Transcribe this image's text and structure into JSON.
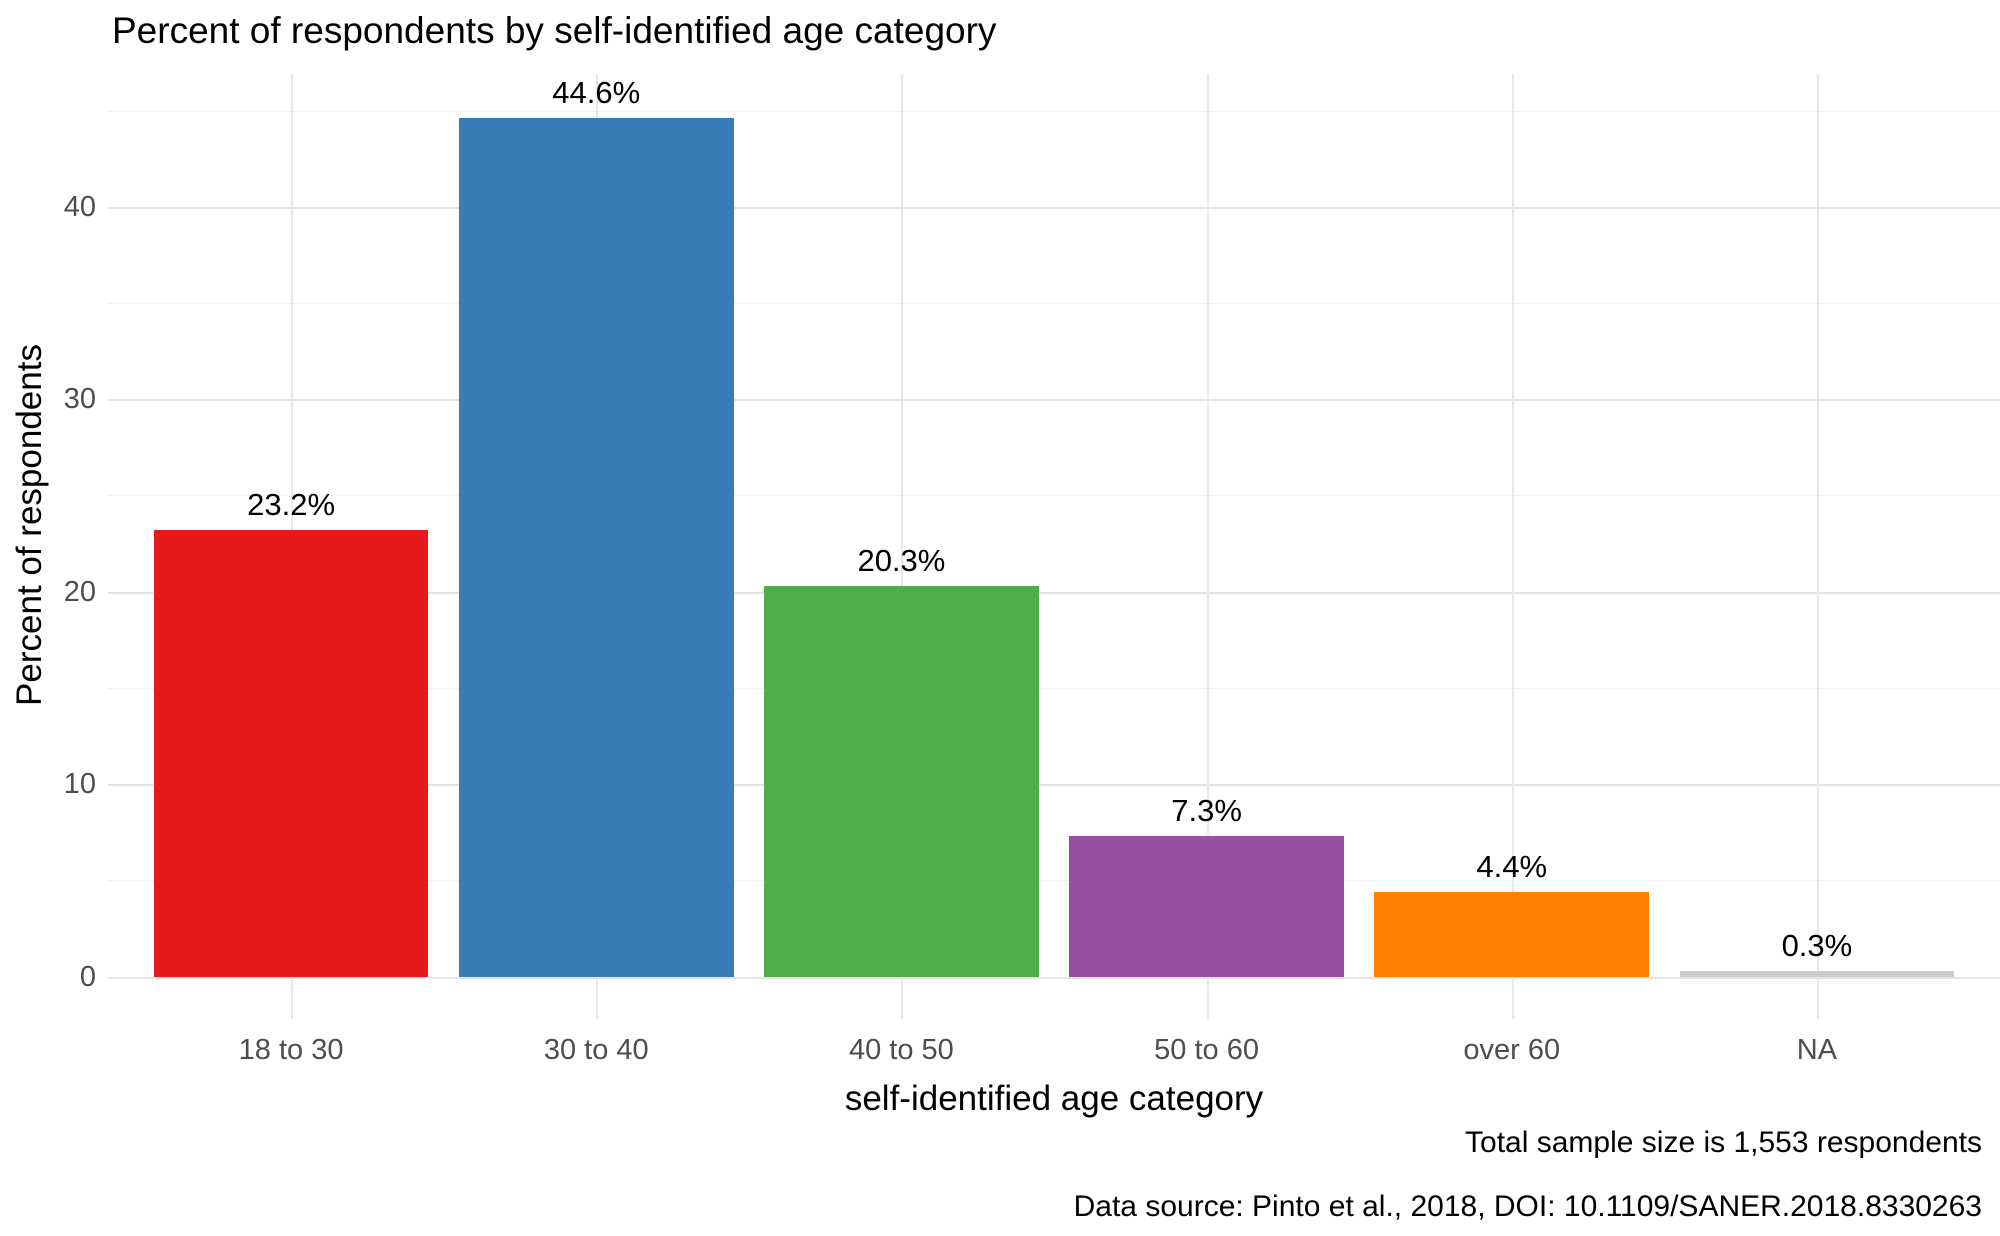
{
  "chart_data": {
    "type": "bar",
    "title": "Percent of respondents by self-identified age category",
    "xlabel": "self-identified age category",
    "ylabel": "Percent of respondents",
    "categories": [
      "18 to 30",
      "30 to 40",
      "40 to 50",
      "50 to 60",
      "over 60",
      "NA"
    ],
    "values": [
      23.2,
      44.6,
      20.3,
      7.3,
      4.4,
      0.3
    ],
    "bar_labels": [
      "23.2%",
      "44.6%",
      "20.3%",
      "7.3%",
      "4.4%",
      "0.3%"
    ],
    "bar_colors": [
      "#E41A1C",
      "#377EB8",
      "#4DAF4A",
      "#984EA3",
      "#FF7F00",
      "#CCCCCC"
    ],
    "y_ticks": [
      0,
      10,
      20,
      30,
      40
    ],
    "y_minor_ticks": [
      5,
      15,
      25,
      35,
      45
    ],
    "ylim": [
      -2.2,
      46.9
    ],
    "grid": "horizontal major+minor, vertical major at category centers",
    "legend": "none",
    "caption": "Total sample size is 1,553 respondents",
    "footnote": "Data source: Pinto et al., 2018, DOI: 10.1109/SANER.2018.8330263"
  },
  "colors": {
    "background": "#FFFFFF",
    "tick_label": "#4D4D4D",
    "grid_major": "#E4E4E4",
    "grid_minor": "#F0F0F0",
    "text": "#000000"
  }
}
